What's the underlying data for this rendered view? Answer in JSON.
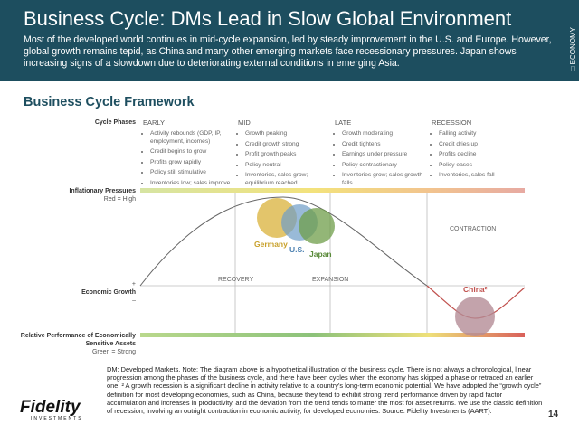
{
  "header": {
    "title": "Business Cycle: DMs Lead in Slow Global Environment",
    "subtitle": "Most of the developed world continues in mid-cycle expansion, led by steady improvement in the U.S. and Europe. However, global growth remains tepid, as China and many other emerging markets face recessionary pressures. Japan shows increasing signs of a slowdown due to deteriorating external conditions in emerging Asia.",
    "section_tag": "ECONOMY"
  },
  "section_title": "Business Cycle Framework",
  "diagram": {
    "row_labels": {
      "cycle_phases": "Cycle Phases",
      "inflation": {
        "title": "Inflationary Pressures",
        "legend": "Red = High"
      },
      "growth": {
        "plus": "+",
        "title": "Economic Growth",
        "minus": "–"
      },
      "performance": {
        "title": "Relative Performance of Economically Sensitive Assets",
        "legend": "Green = Strong"
      }
    },
    "phases": [
      {
        "name": "EARLY",
        "bullets": [
          "Activity rebounds (GDP, IP, employment, incomes)",
          "Credit begins to grow",
          "Profits grow rapidly",
          "Policy still stimulative",
          "Inventories low; sales improve"
        ]
      },
      {
        "name": "MID",
        "bullets": [
          "Growth peaking",
          "Credit growth strong",
          "Profit growth peaks",
          "Policy neutral",
          "Inventories, sales grow; equilibrium reached"
        ]
      },
      {
        "name": "LATE",
        "bullets": [
          "Growth moderating",
          "Credit tightens",
          "Earnings under pressure",
          "Policy contractionary",
          "Inventories grow; sales growth falls"
        ]
      },
      {
        "name": "RECESSION",
        "bullets": [
          "Falling activity",
          "Credit dries up",
          "Profits decline",
          "Policy eases",
          "Inventories, sales fall"
        ]
      }
    ],
    "stages": {
      "recovery": "RECOVERY",
      "expansion": "EXPANSION",
      "contraction": "CONTRACTION"
    },
    "countries": {
      "germany": "Germany",
      "us": "U.S.",
      "japan": "Japan",
      "china": "China²"
    }
  },
  "footnote": "DM: Developed Markets. Note: The diagram above is a hypothetical illustration of the business cycle. There is not always a chronological, linear progression among the phases of the business cycle, and there have been cycles when the economy has skipped a phase or retraced an earlier one. ² A growth recession is a significant decline in activity relative to a country’s long-term economic potential. We have adopted the “growth cycle” definition for most developing economies, such as China, because they tend to exhibit strong trend performance driven by rapid factor accumulation and increases in productivity, and the deviation from the trend tends to matter the most for asset returns. We use the classic definition of recession, involving an outright contraction in economic activity, for developed economies. Source: Fidelity Investments (AART).",
  "logo": {
    "name": "Fidelity",
    "sub": "INVESTMENTS"
  },
  "page_number": "14"
}
